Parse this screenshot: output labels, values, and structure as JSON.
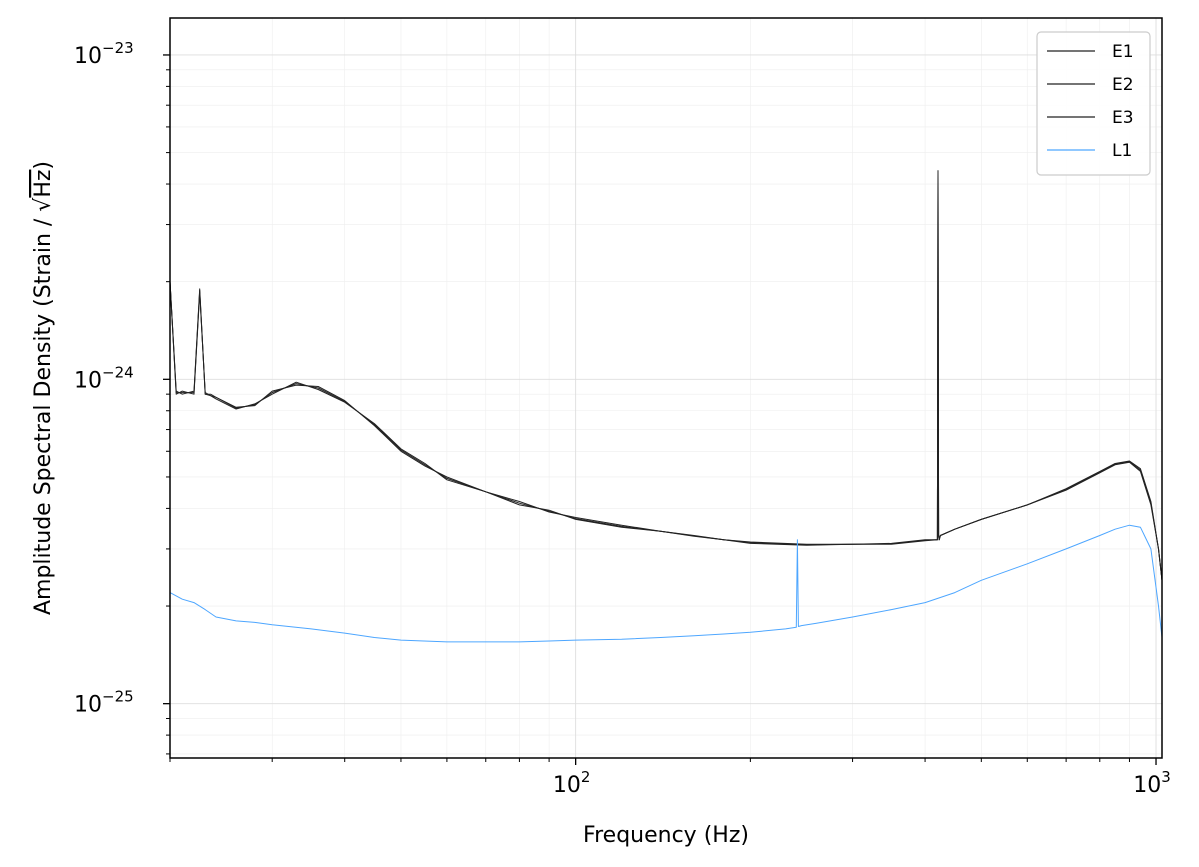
{
  "chart_data": {
    "type": "line",
    "title": "",
    "xlabel": "Frequency (Hz)",
    "ylabel_prefix": "Amplitude Spectral Density (Strain / ",
    "ylabel_sqrt": "√",
    "ylabel_unit": "Hz",
    "ylabel_suffix": ")",
    "xscale": "log",
    "yscale": "log",
    "xlim": [
      20,
      1024
    ],
    "ylim": [
      6.8e-26,
      1.3e-23
    ],
    "grid": true,
    "legend_position": "top-right",
    "x_ticks": [
      {
        "value": 100,
        "base": "10",
        "exp": "2"
      },
      {
        "value": 1000,
        "base": "10",
        "exp": "3"
      }
    ],
    "y_ticks": [
      {
        "value": 1e-25,
        "base": "10",
        "exp": "−25"
      },
      {
        "value": 1e-24,
        "base": "10",
        "exp": "−24"
      },
      {
        "value": 1e-23,
        "base": "10",
        "exp": "−23"
      }
    ],
    "series": [
      {
        "name": "E1",
        "color": "#222222",
        "x": [
          20,
          20.5,
          21,
          22,
          22.5,
          23,
          23.5,
          24,
          26,
          28,
          30,
          33,
          36,
          40,
          45,
          50,
          55,
          60,
          70,
          80,
          90,
          100,
          120,
          140,
          160,
          180,
          200,
          250,
          300,
          350,
          400,
          420,
          421,
          422,
          423,
          425,
          450,
          500,
          600,
          700,
          800,
          850,
          900,
          940,
          980,
          1010,
          1024
        ],
        "y": [
          2e-24,
          9.2e-25,
          9e-25,
          9.2e-25,
          1.9e-24,
          9e-25,
          9e-25,
          8.8e-25,
          8.2e-25,
          8.3e-25,
          9.2e-25,
          9.6e-25,
          9.5e-25,
          8.6e-25,
          7.2e-25,
          6e-25,
          5.4e-25,
          5e-25,
          4.5e-25,
          4.2e-25,
          3.9e-25,
          3.75e-25,
          3.55e-25,
          3.4e-25,
          3.3e-25,
          3.2e-25,
          3.15e-25,
          3.1e-25,
          3.1e-25,
          3.12e-25,
          3.2e-25,
          3.2e-25,
          4.4e-24,
          3.3e-25,
          3.2e-25,
          3.3e-25,
          3.45e-25,
          3.7e-25,
          4.1e-25,
          4.6e-25,
          5.2e-25,
          5.5e-25,
          5.6e-25,
          5.3e-25,
          4.2e-25,
          3e-25,
          2.4e-25
        ]
      },
      {
        "name": "E2",
        "color": "#222222",
        "x": [
          20,
          20.5,
          21,
          22,
          22.5,
          23,
          23.5,
          24,
          26,
          28,
          30,
          33,
          36,
          40,
          45,
          50,
          55,
          60,
          70,
          80,
          90,
          100,
          120,
          140,
          160,
          180,
          200,
          250,
          300,
          350,
          400,
          420,
          421,
          422,
          423,
          425,
          450,
          500,
          600,
          700,
          800,
          850,
          900,
          940,
          980,
          1010,
          1024
        ],
        "y": [
          2e-24,
          9e-25,
          9.2e-25,
          9e-25,
          1.85e-24,
          9.1e-25,
          8.9e-25,
          8.7e-25,
          8.1e-25,
          8.4e-25,
          9e-25,
          9.8e-25,
          9.3e-25,
          8.5e-25,
          7.3e-25,
          6.1e-25,
          5.5e-25,
          4.9e-25,
          4.5e-25,
          4.1e-25,
          3.95e-25,
          3.7e-25,
          3.5e-25,
          3.4e-25,
          3.28e-25,
          3.2e-25,
          3.12e-25,
          3.08e-25,
          3.1e-25,
          3.1e-25,
          3.18e-25,
          3.2e-25,
          4.3e-24,
          3.3e-25,
          3.2e-25,
          3.3e-25,
          3.45e-25,
          3.7e-25,
          4.1e-25,
          4.55e-25,
          5.15e-25,
          5.45e-25,
          5.55e-25,
          5.2e-25,
          4.1e-25,
          3e-25,
          2.4e-25
        ]
      },
      {
        "name": "E3",
        "color": "#222222",
        "x": [
          20,
          20.5,
          21,
          22,
          22.5,
          23,
          23.5,
          24,
          26,
          28,
          30,
          33,
          36,
          40,
          45,
          50,
          55,
          60,
          70,
          80,
          90,
          100,
          120,
          140,
          160,
          180,
          200,
          250,
          300,
          350,
          400,
          420,
          421,
          422,
          423,
          425,
          450,
          500,
          600,
          700,
          800,
          850,
          900,
          940,
          980,
          1010,
          1024
        ],
        "y": [
          2e-24,
          9.1e-25,
          9.1e-25,
          9.1e-25,
          1.88e-24,
          9e-25,
          8.9e-25,
          8.8e-25,
          8.15e-25,
          8.35e-25,
          9.1e-25,
          9.7e-25,
          9.4e-25,
          8.55e-25,
          7.25e-25,
          6.05e-25,
          5.45e-25,
          4.95e-25,
          4.5e-25,
          4.15e-25,
          3.92e-25,
          3.72e-25,
          3.52e-25,
          3.4e-25,
          3.29e-25,
          3.2e-25,
          3.14e-25,
          3.09e-25,
          3.1e-25,
          3.11e-25,
          3.19e-25,
          3.2e-25,
          4.35e-24,
          3.3e-25,
          3.2e-25,
          3.3e-25,
          3.45e-25,
          3.7e-25,
          4.1e-25,
          4.58e-25,
          5.18e-25,
          5.48e-25,
          5.58e-25,
          5.25e-25,
          4.15e-25,
          3e-25,
          2.4e-25
        ]
      },
      {
        "name": "L1",
        "color": "#4da6ff",
        "x": [
          20,
          21,
          22,
          23,
          24,
          26,
          28,
          30,
          35,
          40,
          45,
          50,
          60,
          70,
          80,
          90,
          100,
          120,
          140,
          160,
          180,
          200,
          230,
          240,
          241,
          242,
          245,
          260,
          300,
          350,
          400,
          450,
          500,
          600,
          700,
          800,
          850,
          900,
          940,
          980,
          1010,
          1024
        ],
        "y": [
          2.2e-25,
          2.1e-25,
          2.05e-25,
          1.95e-25,
          1.85e-25,
          1.8e-25,
          1.78e-25,
          1.75e-25,
          1.7e-25,
          1.65e-25,
          1.6e-25,
          1.57e-25,
          1.55e-25,
          1.55e-25,
          1.55e-25,
          1.56e-25,
          1.57e-25,
          1.58e-25,
          1.6e-25,
          1.62e-25,
          1.64e-25,
          1.66e-25,
          1.7e-25,
          1.72e-25,
          3.2e-25,
          1.73e-25,
          1.74e-25,
          1.77e-25,
          1.85e-25,
          1.95e-25,
          2.05e-25,
          2.2e-25,
          2.4e-25,
          2.7e-25,
          3e-25,
          3.3e-25,
          3.45e-25,
          3.55e-25,
          3.5e-25,
          3e-25,
          2e-25,
          1.6e-25
        ]
      }
    ]
  }
}
